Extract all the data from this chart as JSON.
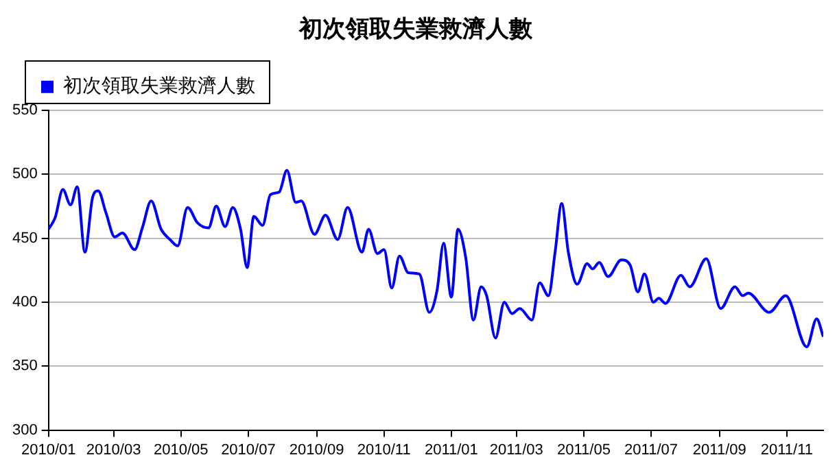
{
  "chart_data": {
    "type": "line",
    "title": "初次領取失業救濟人數",
    "x": [
      "2010-01-01",
      "2010-01-07",
      "2010-01-14",
      "2010-01-21",
      "2010-01-27",
      "2010-02-03",
      "2010-02-10",
      "2010-02-15",
      "2010-02-22",
      "2010-03-02",
      "2010-03-09",
      "2010-03-20",
      "2010-03-27",
      "2010-04-04",
      "2010-04-13",
      "2010-04-21",
      "2010-04-28",
      "2010-05-07",
      "2010-05-16",
      "2010-05-26",
      "2010-06-02",
      "2010-06-10",
      "2010-06-17",
      "2010-06-24",
      "2010-06-30",
      "2010-07-06",
      "2010-07-14",
      "2010-07-21",
      "2010-07-29",
      "2010-08-05",
      "2010-08-13",
      "2010-08-18",
      "2010-08-30",
      "2010-09-09",
      "2010-09-20",
      "2010-09-29",
      "2010-10-12",
      "2010-10-18",
      "2010-10-26",
      "2010-11-01",
      "2010-11-08",
      "2010-11-15",
      "2010-11-23",
      "2010-12-03",
      "2010-12-12",
      "2010-12-19",
      "2010-12-25",
      "2011-01-01",
      "2011-01-07",
      "2011-01-14",
      "2011-01-21",
      "2011-01-28",
      "2011-02-02",
      "2011-02-10",
      "2011-02-18",
      "2011-02-25",
      "2011-03-04",
      "2011-03-15",
      "2011-03-22",
      "2011-03-30",
      "2011-04-05",
      "2011-04-11",
      "2011-04-17",
      "2011-04-25",
      "2011-05-04",
      "2011-05-09",
      "2011-05-15",
      "2011-05-23",
      "2011-06-04",
      "2011-06-12",
      "2011-06-19",
      "2011-06-25",
      "2011-07-03",
      "2011-07-08",
      "2011-07-14",
      "2011-07-28",
      "2011-08-05",
      "2011-08-20",
      "2011-09-02",
      "2011-09-15",
      "2011-09-22",
      "2011-09-27",
      "2011-10-16",
      "2011-10-31",
      "2011-11-19",
      "2011-11-28",
      "2011-12-04"
    ],
    "series": [
      {
        "name": "初次領取失業救濟人數",
        "color": "#0000ff",
        "values": [
          457,
          466,
          488,
          476,
          490,
          439,
          482,
          487,
          470,
          451,
          454,
          441,
          458,
          479,
          457,
          449,
          444,
          474,
          462,
          458,
          475,
          459,
          474,
          457,
          427,
          467,
          460,
          484,
          486,
          503,
          478,
          479,
          453,
          468,
          449,
          474,
          439,
          457,
          438,
          441,
          411,
          436,
          423,
          422,
          392,
          409,
          446,
          404,
          457,
          435,
          386,
          412,
          405,
          372,
          400,
          391,
          395,
          386,
          415,
          405,
          439,
          477,
          439,
          414,
          430,
          426,
          431,
          420,
          433,
          429,
          408,
          422,
          400,
          403,
          399,
          421,
          412,
          434,
          395,
          412,
          405,
          407,
          392,
          405,
          365,
          387,
          373
        ]
      }
    ],
    "xlim": [
      "2010-01-01",
      "2011-12-04"
    ],
    "xticks": [
      {
        "value": "2010-01-01",
        "label": "2010/01"
      },
      {
        "value": "2010-03-01",
        "label": "2010/03"
      },
      {
        "value": "2010-05-01",
        "label": "2010/05"
      },
      {
        "value": "2010-07-01",
        "label": "2010/07"
      },
      {
        "value": "2010-09-01",
        "label": "2010/09"
      },
      {
        "value": "2010-11-01",
        "label": "2010/11"
      },
      {
        "value": "2011-01-01",
        "label": "2011/01"
      },
      {
        "value": "2011-03-01",
        "label": "2011/03"
      },
      {
        "value": "2011-05-01",
        "label": "2011/05"
      },
      {
        "value": "2011-07-01",
        "label": "2011/07"
      },
      {
        "value": "2011-09-01",
        "label": "2011/09"
      },
      {
        "value": "2011-11-01",
        "label": "2011/11"
      }
    ],
    "ylim": [
      300,
      550
    ],
    "yticks": [
      300,
      350,
      400,
      450,
      500,
      550
    ],
    "grid": "y",
    "legend": "top left",
    "marker": "none",
    "line_style": "solid"
  }
}
